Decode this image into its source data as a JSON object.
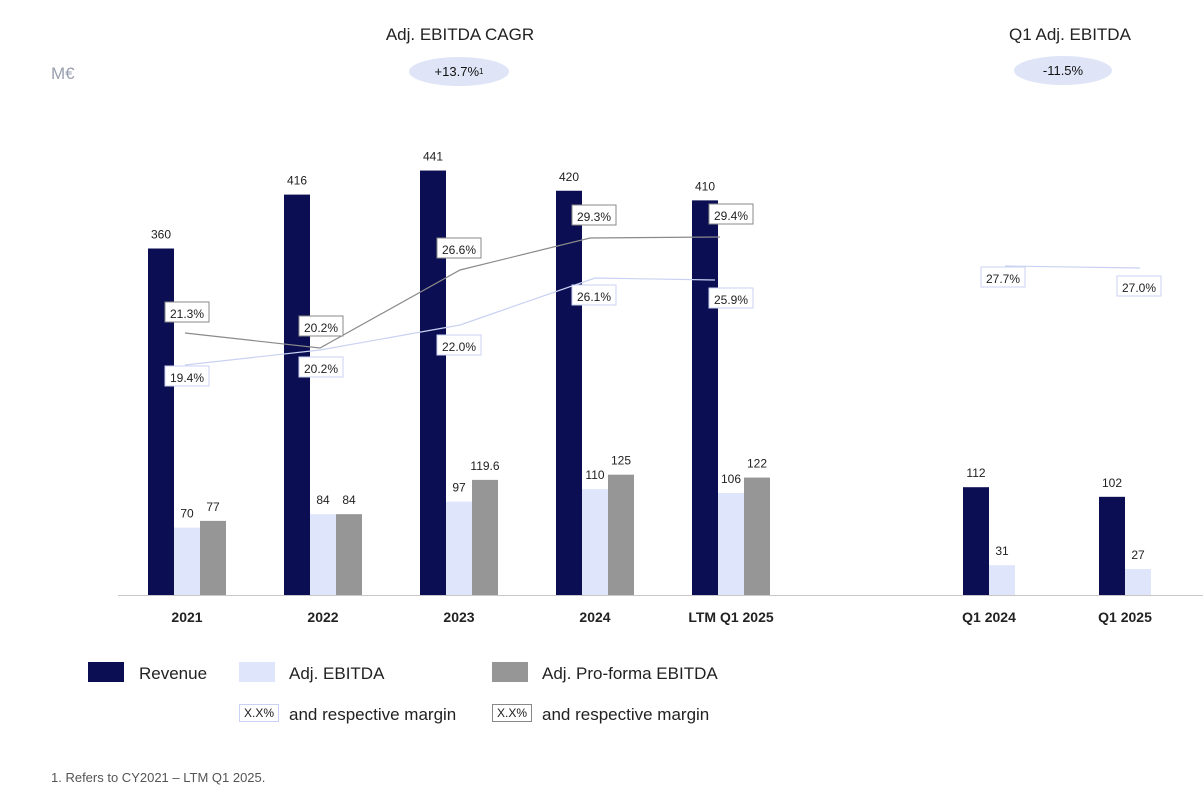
{
  "header": {
    "unit": "M€",
    "left_title": "Adj. EBITDA CAGR",
    "left_pill": "+13.7%",
    "left_pill_sup": "1",
    "right_title": "Q1 Adj. EBITDA",
    "right_pill": "-11.5%"
  },
  "legend": {
    "revenue": "Revenue",
    "adj_ebitda": "Adj. EBITDA",
    "proforma": "Adj. Pro-forma EBITDA",
    "margin_box": "X.X%",
    "margin_text_1": "and respective margin",
    "margin_text_2": "and respective margin"
  },
  "footnote": "1.  Refers to CY2021 – LTM Q1 2025.",
  "colors": {
    "revenue": "#0b0e52",
    "adj_ebitda": "#dfe5fb",
    "proforma": "#969696"
  },
  "chart_data": [
    {
      "type": "bar",
      "categories": [
        "2021",
        "2022",
        "2023",
        "2024",
        "LTM Q1 2025"
      ],
      "series": [
        {
          "name": "Revenue",
          "values": [
            360,
            416,
            441,
            420,
            410
          ],
          "labels": [
            "360",
            "416",
            "441",
            "420",
            "410"
          ]
        },
        {
          "name": "Adj. EBITDA",
          "values": [
            70,
            84,
            97,
            110,
            106
          ],
          "labels": [
            "70",
            "84",
            "97",
            "110",
            "106"
          ]
        },
        {
          "name": "Adj. Pro-forma EBITDA",
          "values": [
            77,
            84,
            119.6,
            125,
            122
          ],
          "labels": [
            "77",
            "84",
            "119.6",
            "125",
            "122"
          ]
        }
      ],
      "margins": {
        "adj_ebitda": [
          "19.4%",
          "20.2%",
          "22.0%",
          "26.1%",
          "25.9%"
        ],
        "proforma": [
          "21.3%",
          "20.2%",
          "26.6%",
          "29.3%",
          "29.4%"
        ]
      }
    },
    {
      "type": "bar",
      "categories": [
        "Q1 2024",
        "Q1 2025"
      ],
      "series": [
        {
          "name": "Revenue",
          "values": [
            112,
            102
          ],
          "labels": [
            "112",
            "102"
          ]
        },
        {
          "name": "Adj. EBITDA",
          "values": [
            31,
            27
          ],
          "labels": [
            "31",
            "27"
          ]
        }
      ],
      "margins": {
        "adj_ebitda": [
          "27.7%",
          "27.0%"
        ]
      }
    }
  ]
}
